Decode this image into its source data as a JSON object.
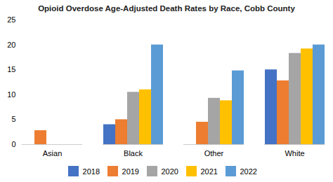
{
  "chart_data": {
    "type": "bar",
    "title": "Opioid Overdose Age-Adjusted Death Rates by Race, Cobb County",
    "categories": [
      "Asian",
      "Black",
      "Other",
      "White"
    ],
    "series": [
      {
        "name": "2018",
        "color": "#4472c4",
        "values": [
          0,
          4.0,
          0,
          15.0
        ]
      },
      {
        "name": "2019",
        "color": "#ed7d31",
        "values": [
          2.8,
          5.0,
          4.5,
          12.8
        ]
      },
      {
        "name": "2020",
        "color": "#a5a5a5",
        "values": [
          0,
          10.5,
          9.3,
          18.3
        ]
      },
      {
        "name": "2021",
        "color": "#ffc000",
        "values": [
          0,
          11.0,
          8.8,
          19.2
        ]
      },
      {
        "name": "2022",
        "color": "#5b9bd5",
        "values": [
          0,
          20.0,
          14.8,
          20.0
        ]
      }
    ],
    "ylim": [
      0,
      25
    ],
    "yticks": [
      0,
      5,
      10,
      15,
      20,
      25
    ],
    "grid": false,
    "legend": "bottom"
  }
}
